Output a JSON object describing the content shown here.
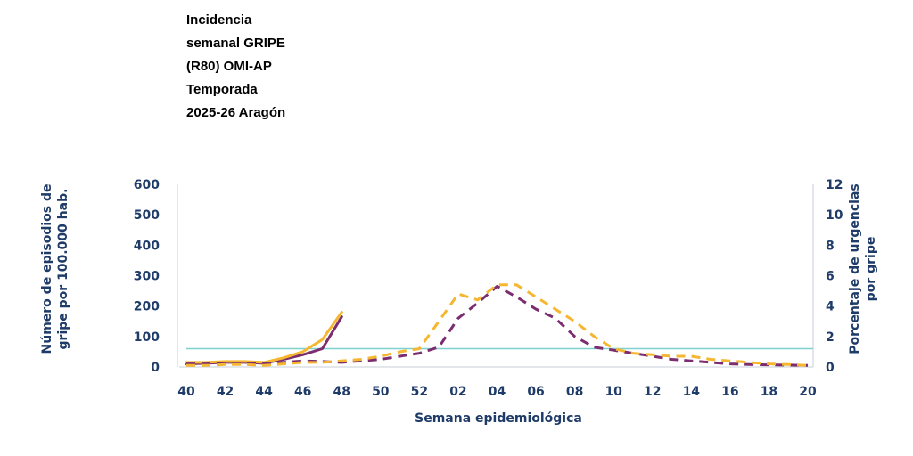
{
  "chart_data": {
    "type": "line",
    "title": "Incidencia\nsemanal GRIPE\n(R80) OMI-AP\nTemporada\n2025-26 Aragón",
    "xlabel": "Semana epidemiológica",
    "ylabel": "Número de episodios de\ngripe por 100.000 hab.",
    "y2label": "Porcentaje de urgencias\npor gripe",
    "ylim": [
      0,
      600
    ],
    "y2lim": [
      0,
      12
    ],
    "yticks": [
      "0",
      "100",
      "200",
      "300",
      "400",
      "500",
      "600"
    ],
    "y2ticks": [
      "0",
      "2",
      "4",
      "6",
      "8",
      "10",
      "12"
    ],
    "categories": [
      "40",
      "41",
      "42",
      "43",
      "44",
      "45",
      "46",
      "47",
      "48",
      "49",
      "50",
      "51",
      "52",
      "01",
      "02",
      "03",
      "04",
      "05",
      "06",
      "07",
      "08",
      "09",
      "10",
      "11",
      "12",
      "13",
      "14",
      "15",
      "16",
      "17",
      "18",
      "19",
      "20"
    ],
    "xtick_labels": [
      "40",
      "42",
      "44",
      "46",
      "48",
      "50",
      "52",
      "02",
      "04",
      "06",
      "08",
      "10",
      "12",
      "14",
      "16",
      "18",
      "20"
    ],
    "threshold": 60,
    "series": [
      {
        "style": "solid",
        "color": "#7b2d6f",
        "values": [
          10,
          12,
          15,
          15,
          12,
          25,
          40,
          60,
          165,
          null,
          null,
          null,
          null,
          null,
          null,
          null,
          null,
          null,
          null,
          null,
          null,
          null,
          null,
          null,
          null,
          null,
          null,
          null,
          null,
          null,
          null,
          null,
          null
        ]
      },
      {
        "style": "solid",
        "color": "#f5b731",
        "values": [
          15,
          15,
          18,
          18,
          15,
          30,
          50,
          90,
          180,
          null,
          null,
          null,
          null,
          null,
          null,
          null,
          null,
          null,
          null,
          null,
          null,
          null,
          null,
          null,
          null,
          null,
          null,
          null,
          null,
          null,
          null,
          null,
          null
        ]
      },
      {
        "style": "dashed",
        "color": "#7b2d6f",
        "values": [
          10,
          10,
          12,
          12,
          10,
          15,
          20,
          18,
          15,
          20,
          25,
          35,
          45,
          65,
          160,
          210,
          265,
          230,
          190,
          160,
          100,
          65,
          55,
          45,
          35,
          25,
          20,
          15,
          10,
          8,
          7,
          6,
          5
        ]
      },
      {
        "style": "dashed",
        "color": "#f5b731",
        "values": [
          5,
          5,
          8,
          8,
          5,
          10,
          15,
          15,
          20,
          25,
          35,
          50,
          60,
          150,
          240,
          220,
          270,
          270,
          230,
          190,
          150,
          100,
          60,
          45,
          40,
          35,
          35,
          25,
          20,
          15,
          10,
          8,
          5
        ]
      }
    ]
  }
}
